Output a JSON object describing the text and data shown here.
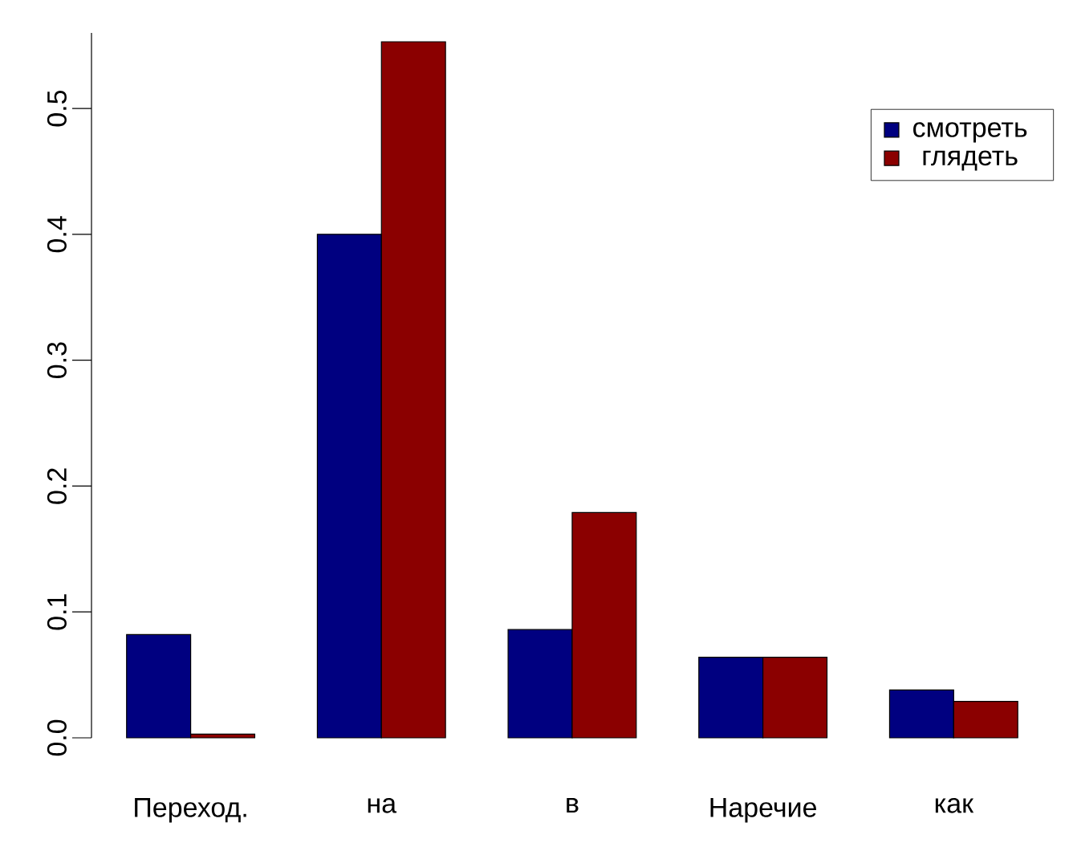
{
  "chart_data": {
    "type": "bar",
    "categories": [
      "Переход.",
      "на",
      "в",
      "Наречие",
      "как"
    ],
    "series": [
      {
        "name": "смотреть",
        "color": "#000080",
        "values": [
          0.082,
          0.4,
          0.086,
          0.064,
          0.038
        ]
      },
      {
        "name": "глядеть",
        "color": "#8b0000",
        "values": [
          0.003,
          0.553,
          0.179,
          0.064,
          0.029
        ]
      }
    ],
    "ylim": [
      0,
      0.56
    ],
    "yticks": [
      {
        "value": 0,
        "label": "0.0"
      },
      0.1,
      0.2,
      0.3,
      0.4,
      0.5
    ],
    "legend": "top right"
  }
}
